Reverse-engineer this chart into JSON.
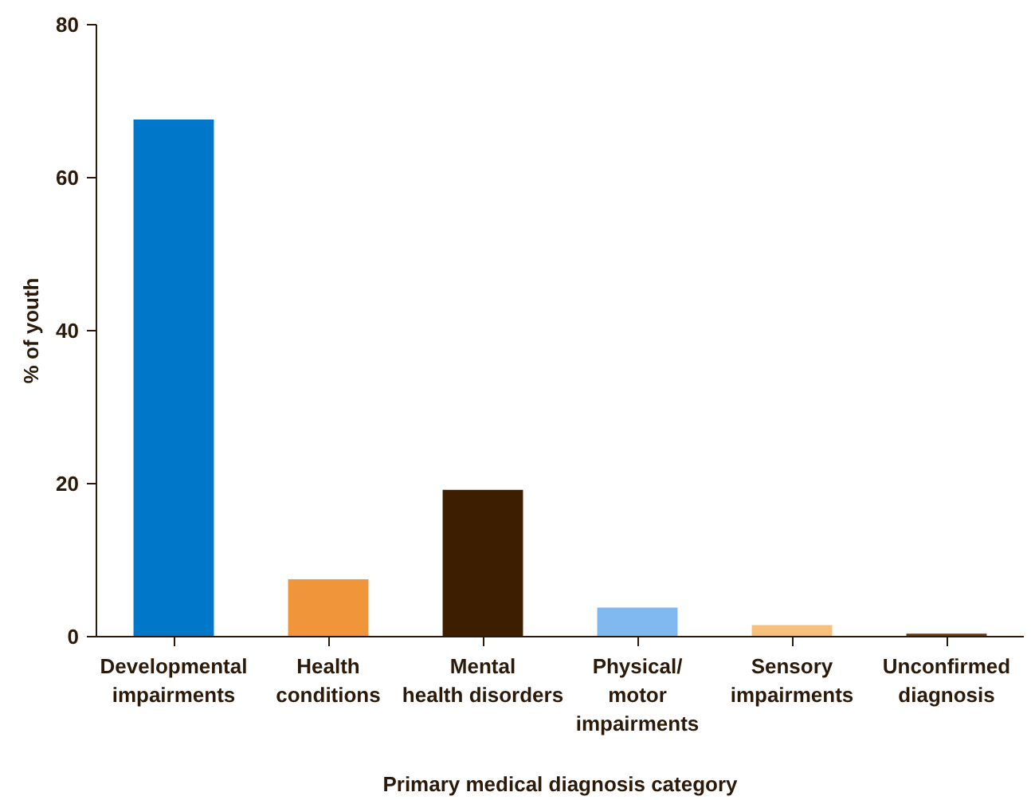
{
  "chart_data": {
    "type": "bar",
    "xlabel": "Primary medical diagnosis category",
    "ylabel": "% of youth",
    "categories": [
      "Developmental\nimpairments",
      "Health\nconditions",
      "Mental\nhealth disorders",
      "Physical/\nmotor\nimpairments",
      "Sensory\nimpairments",
      "Unconfirmed\ndiagnosis"
    ],
    "values": [
      67.6,
      7.5,
      19.2,
      3.8,
      1.5,
      0.4
    ],
    "colors": [
      "#0077c8",
      "#f0953a",
      "#3d1f00",
      "#80b8f0",
      "#f7c07a",
      "#6b3a0a"
    ],
    "ylim": [
      0,
      80
    ],
    "yticks": [
      0,
      20,
      40,
      60,
      80
    ],
    "grid": false
  }
}
